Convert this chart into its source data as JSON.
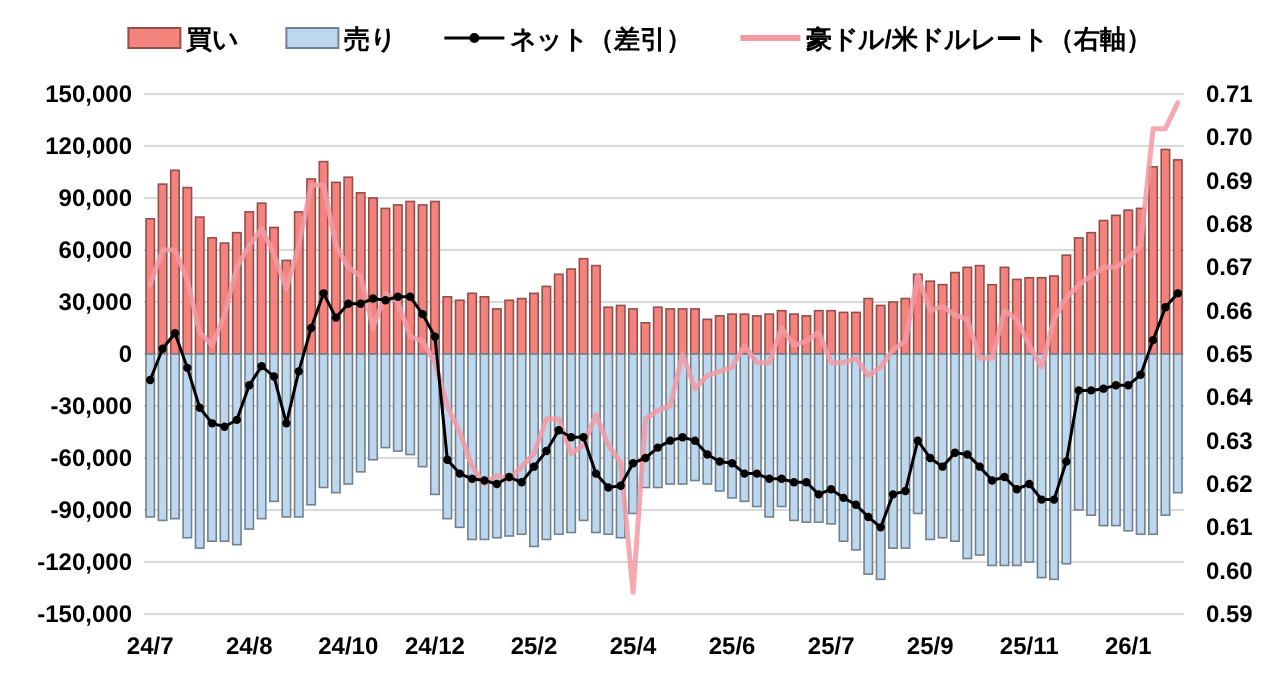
{
  "chart_data": {
    "type": "bar",
    "stacked": true,
    "grid": "y",
    "legend": "top",
    "categories": [
      "24/7",
      null,
      null,
      null,
      null,
      null,
      null,
      null,
      "24/8",
      null,
      null,
      null,
      null,
      null,
      null,
      null,
      "24/10",
      null,
      null,
      null,
      null,
      null,
      null,
      "24/12",
      null,
      null,
      null,
      null,
      null,
      null,
      null,
      "25/2",
      null,
      null,
      null,
      null,
      null,
      null,
      null,
      "25/4",
      null,
      null,
      null,
      null,
      null,
      null,
      null,
      "25/6",
      null,
      null,
      null,
      null,
      null,
      null,
      null,
      "25/7",
      null,
      null,
      null,
      null,
      null,
      null,
      null,
      "25/9",
      null,
      null,
      null,
      null,
      null,
      null,
      null,
      "25/11",
      null,
      null,
      null,
      null,
      null,
      null,
      null,
      "26/1",
      null,
      null,
      null,
      null
    ],
    "ylim": [
      -150000,
      150000
    ],
    "yticks": [
      {
        "value": -150000,
        "label": "-150,000"
      },
      {
        "value": -120000,
        "label": "-120,000"
      },
      {
        "value": -90000,
        "label": "-90,000"
      },
      {
        "value": -60000,
        "label": "-60,000"
      },
      {
        "value": -30000,
        "label": "-30,000"
      },
      0,
      {
        "value": 30000,
        "label": "30,000"
      },
      {
        "value": 60000,
        "label": "60,000"
      },
      {
        "value": 90000,
        "label": "90,000"
      },
      {
        "value": 120000,
        "label": "120,000"
      },
      {
        "value": 150000,
        "label": "150,000"
      }
    ],
    "y2lim": [
      0.59,
      0.71
    ],
    "y2ticks": [
      0.59,
      {
        "value": 0.6,
        "label": "0.60"
      },
      0.61,
      0.62,
      0.63,
      0.64,
      0.65,
      0.66,
      0.67,
      0.68,
      0.69,
      {
        "value": 0.7,
        "label": "0.70"
      },
      0.71
    ],
    "series": [
      {
        "name": "買い",
        "color": "#f4837d",
        "values": [
          78000,
          98000,
          106000,
          96000,
          79000,
          67000,
          64000,
          70000,
          82000,
          87000,
          73000,
          54000,
          82000,
          101000,
          111000,
          99000,
          102000,
          93000,
          90000,
          84000,
          86000,
          88000,
          86000,
          88000,
          33000,
          31000,
          35000,
          33000,
          26000,
          31000,
          32000,
          35000,
          39000,
          46000,
          49000,
          55000,
          51000,
          27000,
          28000,
          26000,
          18000,
          27000,
          26000,
          26000,
          26000,
          20000,
          22000,
          23000,
          23000,
          22000,
          23000,
          25000,
          23000,
          22000,
          25000,
          25000,
          24000,
          24000,
          32000,
          28000,
          30000,
          32000,
          46000,
          42000,
          40000,
          47000,
          50000,
          51000,
          40000,
          50000,
          43000,
          44000,
          44000,
          45000,
          57000,
          67000,
          70000,
          77000,
          80000,
          83000,
          84000,
          108000,
          118000,
          112000
        ]
      },
      {
        "name": "売り",
        "color": "#bdd7ee",
        "values": [
          -94000,
          -96000,
          -95000,
          -106000,
          -112000,
          -108000,
          -108000,
          -110000,
          -101000,
          -95000,
          -85000,
          -94000,
          -94000,
          -87000,
          -77000,
          -80000,
          -75000,
          -68000,
          -61000,
          -54000,
          -56000,
          -58000,
          -65000,
          -81000,
          -95000,
          -100000,
          -107000,
          -107000,
          -106000,
          -105000,
          -104000,
          -111000,
          -107000,
          -104000,
          -103000,
          -96000,
          -103000,
          -104000,
          -106000,
          -92000,
          -77000,
          -77000,
          -75000,
          -75000,
          -73000,
          -75000,
          -79000,
          -83000,
          -85000,
          -88000,
          -94000,
          -88000,
          -96000,
          -97000,
          -97000,
          -98000,
          -108000,
          -113000,
          -127000,
          -130000,
          -112000,
          -112000,
          -92000,
          -107000,
          -106000,
          -108000,
          -118000,
          -116000,
          -122000,
          -122000,
          -122000,
          -120000,
          -129000,
          -130000,
          -121000,
          -90000,
          -93000,
          -99000,
          -99000,
          -102000,
          -104000,
          -104000,
          -93000,
          -80000
        ]
      },
      {
        "name": "ネット（差引）",
        "type": "line",
        "color": "#000000",
        "marker": "circle",
        "values": [
          -15000,
          3000,
          12000,
          -8000,
          -31000,
          -40000,
          -42000,
          -38000,
          -18000,
          -7000,
          -13000,
          -40000,
          -10000,
          15000,
          35000,
          21000,
          29000,
          29000,
          32000,
          31000,
          33000,
          33000,
          23000,
          10000,
          -61000,
          -69000,
          -72000,
          -73000,
          -75000,
          -71000,
          -74000,
          -65000,
          -56000,
          -44000,
          -48000,
          -48000,
          -69000,
          -77000,
          -76000,
          -63000,
          -60000,
          -54000,
          -50000,
          -48000,
          -50000,
          -58000,
          -62000,
          -63000,
          -69000,
          -69000,
          -72000,
          -72000,
          -74000,
          -74000,
          -81000,
          -78000,
          -83000,
          -87000,
          -94000,
          -100000,
          -81000,
          -79000,
          -50000,
          -60000,
          -65000,
          -57000,
          -58000,
          -65000,
          -73000,
          -71000,
          -78000,
          -75000,
          -84000,
          -84000,
          -62000,
          -21000,
          -21000,
          -20000,
          -18000,
          -18000,
          -12000,
          8000,
          27000,
          35000
        ]
      },
      {
        "name": "豪ドル/米ドルレート（右軸）",
        "type": "line",
        "axis": "y2",
        "color": "#f39aa3",
        "marker": "none",
        "values": [
          0.666,
          0.674,
          0.674,
          0.667,
          0.655,
          0.652,
          0.659,
          0.67,
          0.675,
          0.679,
          0.673,
          0.665,
          0.675,
          0.689,
          0.689,
          0.675,
          0.67,
          0.668,
          0.656,
          0.664,
          0.662,
          0.654,
          0.653,
          0.648,
          0.638,
          0.632,
          0.624,
          0.62,
          0.622,
          0.621,
          0.624,
          0.627,
          0.635,
          0.635,
          0.627,
          0.629,
          0.636,
          0.629,
          0.625,
          0.595,
          0.635,
          0.637,
          0.638,
          0.65,
          0.642,
          0.645,
          0.646,
          0.647,
          0.652,
          0.648,
          0.648,
          0.656,
          0.652,
          0.653,
          0.655,
          0.648,
          0.648,
          0.649,
          0.645,
          0.647,
          0.651,
          0.653,
          0.668,
          0.66,
          0.661,
          0.659,
          0.658,
          0.649,
          0.649,
          0.66,
          0.658,
          0.652,
          0.647,
          0.658,
          0.663,
          0.666,
          0.668,
          0.67,
          0.67,
          0.672,
          0.675,
          0.702,
          0.702,
          0.708
        ]
      }
    ]
  }
}
